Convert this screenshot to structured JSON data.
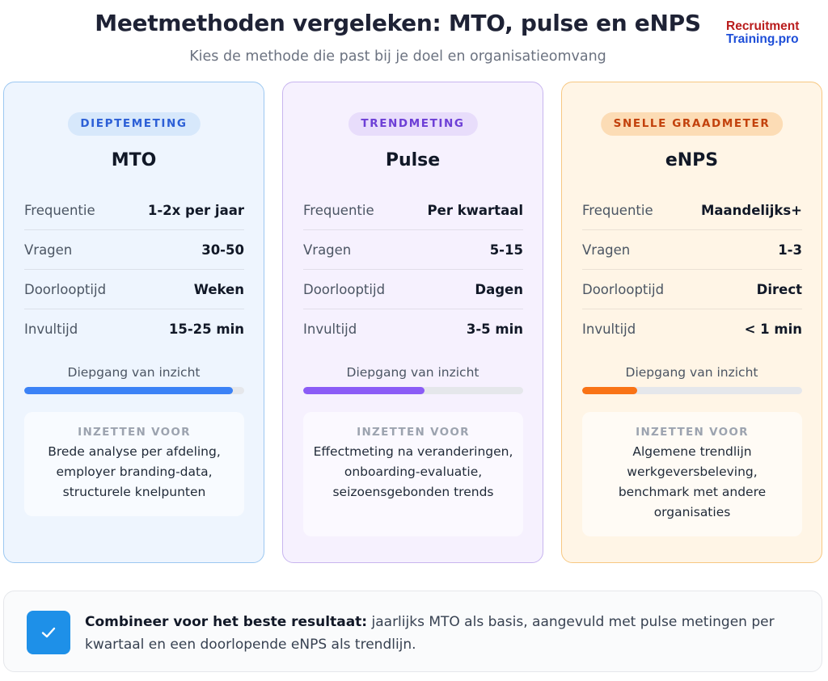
{
  "header": {
    "title": "Meetmethoden vergeleken: MTO, pulse en eNPS",
    "subtitle": "Kies de methode die past bij je doel en organisatieomvang",
    "logo_line1": "Recruitment",
    "logo_line2": "Training.pro"
  },
  "cards": [
    {
      "badge": "DIEPTEMETING",
      "title": "MTO",
      "rows": [
        {
          "label": "Frequentie",
          "value": "1-2x per jaar"
        },
        {
          "label": "Vragen",
          "value": "30-50"
        },
        {
          "label": "Doorlooptijd",
          "value": "Weken"
        },
        {
          "label": "Invultijd",
          "value": "15-25 min"
        }
      ],
      "depth_label": "Diepgang van inzicht",
      "depth_level": 0.95,
      "use_heading": "INZETTEN VOOR",
      "use_text": "Brede analyse per afdeling, employer branding-data, structurele knelpunten",
      "color": "#3b82f6"
    },
    {
      "badge": "TRENDMETING",
      "title": "Pulse",
      "rows": [
        {
          "label": "Frequentie",
          "value": "Per kwartaal"
        },
        {
          "label": "Vragen",
          "value": "5-15"
        },
        {
          "label": "Doorlooptijd",
          "value": "Dagen"
        },
        {
          "label": "Invultijd",
          "value": "3-5 min"
        }
      ],
      "depth_label": "Diepgang van inzicht",
      "depth_level": 0.55,
      "use_heading": "INZETTEN VOOR",
      "use_text": "Effectmeting na veranderingen, onboarding-evaluatie, seizoensgebonden trends",
      "color": "#8b5cf6"
    },
    {
      "badge": "SNELLE GRAADMETER",
      "title": "eNPS",
      "rows": [
        {
          "label": "Frequentie",
          "value": "Maandelijks+"
        },
        {
          "label": "Vragen",
          "value": "1-3"
        },
        {
          "label": "Doorlooptijd",
          "value": "Direct"
        },
        {
          "label": "Invultijd",
          "value": "< 1 min"
        }
      ],
      "depth_label": "Diepgang van inzicht",
      "depth_level": 0.25,
      "use_heading": "INZETTEN VOOR",
      "use_text": "Algemene trendlijn werkgeversbeleving, benchmark met andere organisaties",
      "color": "#f97316"
    }
  ],
  "footer": {
    "icon": "checkmark-icon",
    "bold": "Combineer voor het beste resultaat:",
    "text": " jaarlijks MTO als basis, aangevuld met pulse metingen per kwartaal en een doorlopende eNPS als trendlijn."
  }
}
